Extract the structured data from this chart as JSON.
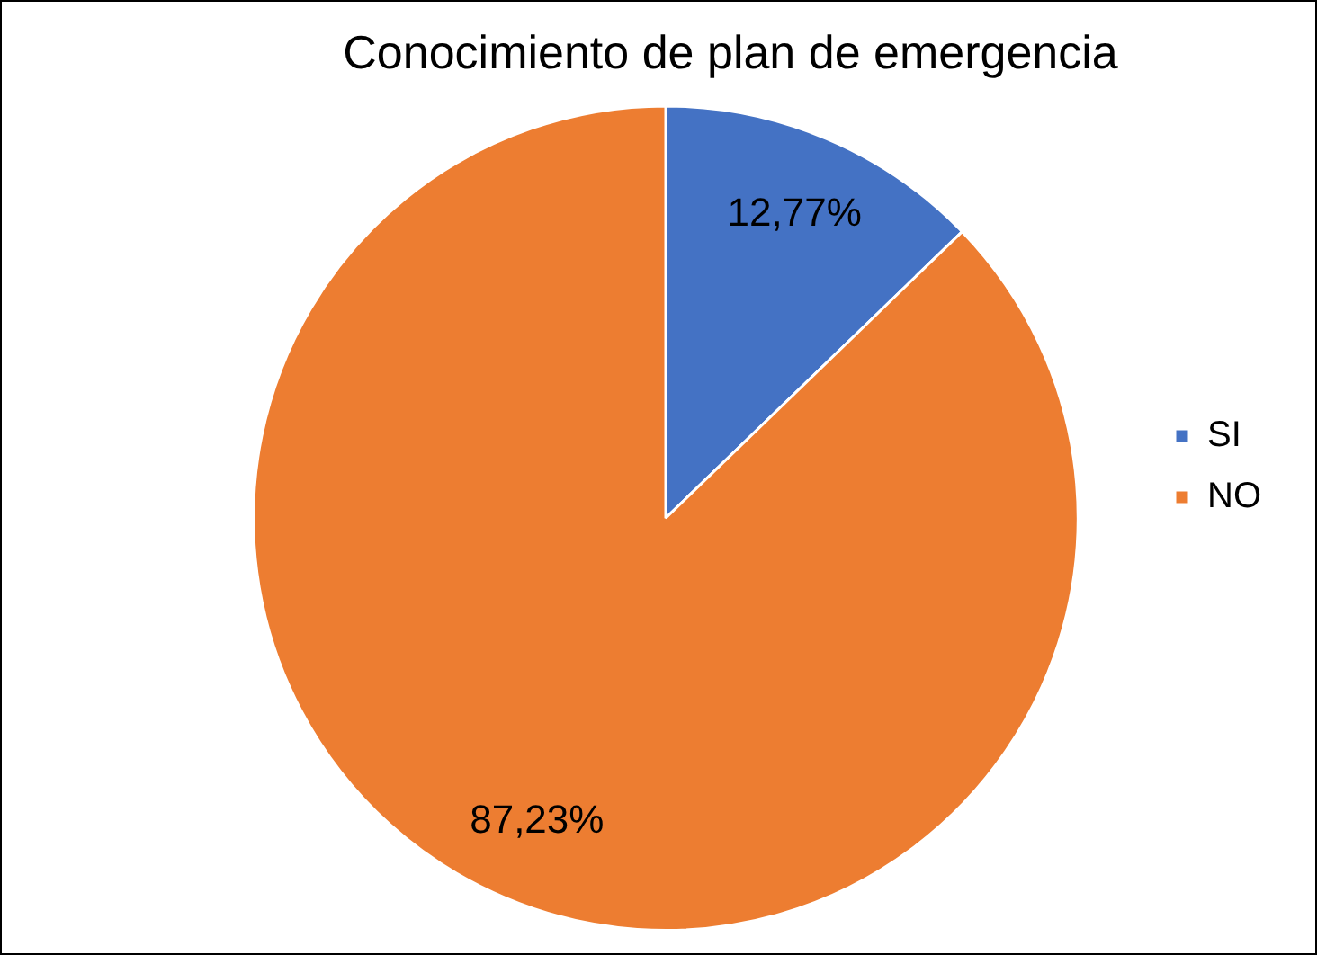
{
  "chart_data": {
    "type": "pie",
    "title": "Conocimiento de plan de emergencia",
    "categories": [
      "SI",
      "NO"
    ],
    "values": [
      12.77,
      87.23
    ],
    "colors": [
      "#4472c4",
      "#ed7d31"
    ],
    "value_labels": [
      "12,77%",
      "87,23%"
    ],
    "legend": "right"
  }
}
